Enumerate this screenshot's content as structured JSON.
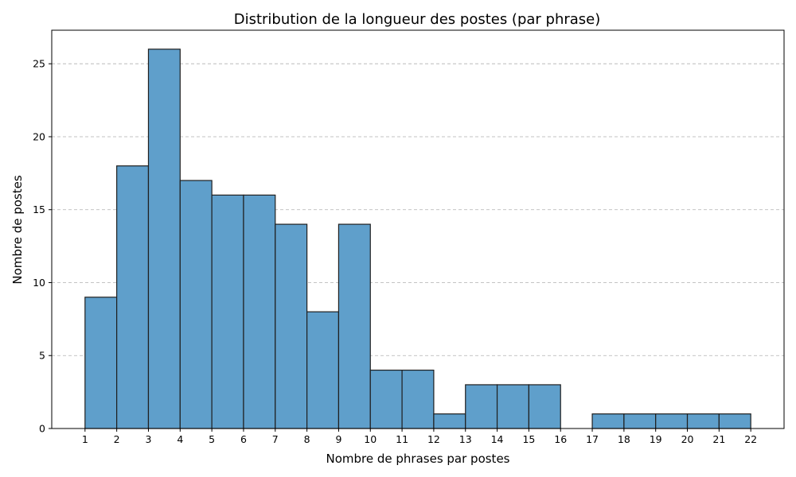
{
  "chart_data": {
    "type": "bar",
    "title": "Distribution de la longueur des postes (par phrase)",
    "xlabel": "Nombre de phrases par postes",
    "ylabel": "Nombre de postes",
    "x_ticks": [
      "1",
      "2",
      "3",
      "4",
      "5",
      "6",
      "7",
      "8",
      "9",
      "10",
      "11",
      "12",
      "13",
      "14",
      "15",
      "16",
      "17",
      "18",
      "19",
      "20",
      "21",
      "22"
    ],
    "y_ticks": [
      "0",
      "5",
      "10",
      "15",
      "20",
      "25"
    ],
    "bins": [
      {
        "start": 1,
        "end": 2,
        "value": 9
      },
      {
        "start": 2,
        "end": 3,
        "value": 18
      },
      {
        "start": 3,
        "end": 4,
        "value": 26
      },
      {
        "start": 4,
        "end": 5,
        "value": 17
      },
      {
        "start": 5,
        "end": 6,
        "value": 16
      },
      {
        "start": 6,
        "end": 7,
        "value": 16
      },
      {
        "start": 7,
        "end": 8,
        "value": 14
      },
      {
        "start": 8,
        "end": 9,
        "value": 8
      },
      {
        "start": 9,
        "end": 10,
        "value": 14
      },
      {
        "start": 10,
        "end": 11,
        "value": 4
      },
      {
        "start": 11,
        "end": 12,
        "value": 4
      },
      {
        "start": 12,
        "end": 13,
        "value": 1
      },
      {
        "start": 13,
        "end": 14,
        "value": 3
      },
      {
        "start": 14,
        "end": 15,
        "value": 3
      },
      {
        "start": 15,
        "end": 16,
        "value": 3
      },
      {
        "start": 16,
        "end": 17,
        "value": 0
      },
      {
        "start": 17,
        "end": 18,
        "value": 1
      },
      {
        "start": 18,
        "end": 19,
        "value": 1
      },
      {
        "start": 19,
        "end": 20,
        "value": 1
      },
      {
        "start": 20,
        "end": 21,
        "value": 1
      },
      {
        "start": 21,
        "end": 22,
        "value": 1
      }
    ],
    "xlim": [
      -0.05,
      23.05
    ],
    "ylim": [
      0,
      27.3
    ],
    "grid": "horizontal dashed",
    "legend": "none",
    "bar_color": "#5f9fcb",
    "edge_color": "#1f1f1f"
  }
}
